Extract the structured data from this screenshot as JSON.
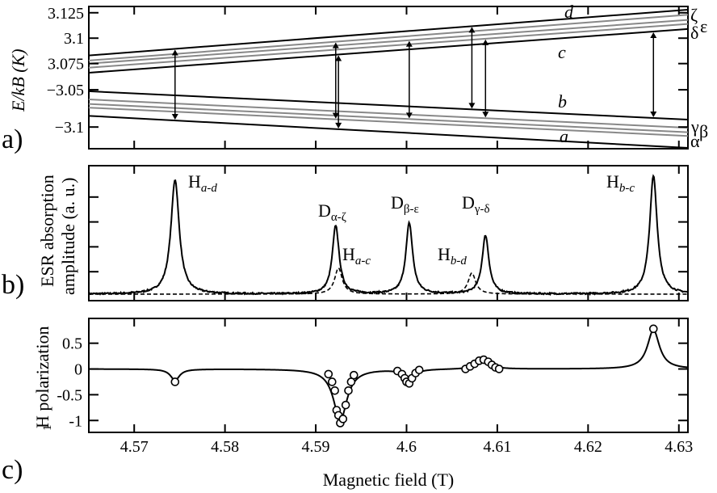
{
  "chart_data": [
    {
      "panel": "a)",
      "type": "line",
      "ylabel": "E/kB (K)",
      "upper_yticks": [
        "3.125",
        "3.1",
        "3.075"
      ],
      "lower_yticks": [
        "−3.05",
        "−3.1"
      ],
      "xlim": [
        4.565,
        4.631
      ],
      "upper_ylim": [
        3.066,
        3.128
      ],
      "lower_ylim": [
        -3.038,
        -3.128
      ],
      "series_upper": [
        {
          "name": "d",
          "x": [
            4.565,
            4.631
          ],
          "y": [
            3.083,
            3.128
          ],
          "color": "#000000"
        },
        {
          "name": "ζ",
          "x": [
            4.565,
            4.631
          ],
          "y": [
            3.078,
            3.123
          ],
          "color": "#888888"
        },
        {
          "name": "ε",
          "x": [
            4.565,
            4.631
          ],
          "y": [
            3.075,
            3.118
          ],
          "color": "#888888"
        },
        {
          "name": "δ",
          "x": [
            4.565,
            4.631
          ],
          "y": [
            3.071,
            3.114
          ],
          "color": "#888888"
        },
        {
          "name": "c",
          "x": [
            4.565,
            4.631
          ],
          "y": [
            3.066,
            3.109
          ],
          "color": "#000000"
        }
      ],
      "series_lower": [
        {
          "name": "b",
          "x": [
            4.565,
            4.631
          ],
          "y": [
            -3.052,
            -3.09
          ],
          "color": "#000000"
        },
        {
          "name": "γ",
          "x": [
            4.565,
            4.631
          ],
          "y": [
            -3.063,
            -3.101
          ],
          "color": "#888888"
        },
        {
          "name": "β",
          "x": [
            4.565,
            4.631
          ],
          "y": [
            -3.069,
            -3.107
          ],
          "color": "#888888"
        },
        {
          "name": "α",
          "x": [
            4.565,
            4.631
          ],
          "y": [
            -3.074,
            -3.112
          ],
          "color": "#888888"
        },
        {
          "name": "a",
          "x": [
            4.565,
            4.631
          ],
          "y": [
            -3.085,
            -3.128
          ],
          "color": "#000000"
        }
      ],
      "line_labels": [
        "d",
        "c",
        "b",
        "a"
      ],
      "right_labels": [
        "ζ",
        "δ",
        "ε",
        "γ",
        "β",
        "α"
      ],
      "transitions": [
        {
          "x": 4.5745,
          "from": "a",
          "to": "d"
        },
        {
          "x": 4.5922,
          "from": "α",
          "to": "ζ"
        },
        {
          "x": 4.5925,
          "from": "a",
          "to": "c"
        },
        {
          "x": 4.6003,
          "from": "β",
          "to": "ε"
        },
        {
          "x": 4.6072,
          "from": "b",
          "to": "d"
        },
        {
          "x": 4.6087,
          "from": "γ",
          "to": "δ"
        },
        {
          "x": 4.6272,
          "from": "b",
          "to": "c"
        }
      ]
    },
    {
      "panel": "b)",
      "type": "line",
      "ylabel_lines": [
        "ESR absorption",
        "amplitude (a. u.)"
      ],
      "xlim": [
        4.565,
        4.631
      ],
      "series": [
        {
          "name": "solid",
          "style": "solid",
          "peaks": [
            {
              "x0": 4.5745,
              "h": 0.92,
              "w": 0.00055
            },
            {
              "x0": 4.5922,
              "h": 0.55,
              "w": 0.00045
            },
            {
              "x0": 4.6003,
              "h": 0.57,
              "w": 0.00045
            },
            {
              "x0": 4.6087,
              "h": 0.47,
              "w": 0.00045
            },
            {
              "x0": 4.6272,
              "h": 0.95,
              "w": 0.0005
            }
          ]
        },
        {
          "name": "dashed",
          "style": "dashed",
          "peaks": [
            {
              "x0": 4.5925,
              "h": 0.21,
              "w": 0.0005
            },
            {
              "x0": 4.6072,
              "h": 0.17,
              "w": 0.0005
            }
          ]
        }
      ],
      "peak_labels": [
        {
          "main": "H",
          "sub": "a-d",
          "sub_italic": true
        },
        {
          "main": "D",
          "sub": "α-ζ",
          "sub_italic": false
        },
        {
          "main": "H",
          "sub": "a-c",
          "sub_italic": true
        },
        {
          "main": "D",
          "sub": "β-ε",
          "sub_italic": false
        },
        {
          "main": "H",
          "sub": "b-d",
          "sub_italic": true
        },
        {
          "main": "D",
          "sub": "γ-δ",
          "sub_italic": false
        },
        {
          "main": "H",
          "sub": "b-c",
          "sub_italic": true
        }
      ]
    },
    {
      "panel": "c)",
      "type": "scatter",
      "ylabel_main": "H polarization",
      "ylabel_sub": "1",
      "xlabel": "Magnetic field (T)",
      "xlim": [
        4.565,
        4.631
      ],
      "ylim": [
        -1.2,
        0.95
      ],
      "yticks": [
        "0.5",
        "0",
        "-0.5",
        "-1"
      ],
      "xticks": [
        "4.57",
        "4.58",
        "4.59",
        "4.6",
        "4.61",
        "4.62",
        "4.63"
      ],
      "points": [
        [
          4.5745,
          -0.25
        ],
        [
          4.5914,
          -0.1
        ],
        [
          4.5918,
          -0.25
        ],
        [
          4.5921,
          -0.42
        ],
        [
          4.5923,
          -0.8
        ],
        [
          4.5925,
          -0.9
        ],
        [
          4.5927,
          -1.05
        ],
        [
          4.593,
          -0.97
        ],
        [
          4.5933,
          -0.7
        ],
        [
          4.5936,
          -0.42
        ],
        [
          4.5939,
          -0.25
        ],
        [
          4.5942,
          -0.12
        ],
        [
          4.599,
          -0.04
        ],
        [
          4.5995,
          -0.1
        ],
        [
          4.5998,
          -0.18
        ],
        [
          4.6,
          -0.25
        ],
        [
          4.6003,
          -0.28
        ],
        [
          4.6006,
          -0.18
        ],
        [
          4.601,
          -0.08
        ],
        [
          4.6014,
          -0.02
        ],
        [
          4.6065,
          0.0
        ],
        [
          4.607,
          0.05
        ],
        [
          4.6075,
          0.1
        ],
        [
          4.608,
          0.16
        ],
        [
          4.6085,
          0.18
        ],
        [
          4.609,
          0.14
        ],
        [
          4.6094,
          0.08
        ],
        [
          4.6098,
          0.03
        ],
        [
          4.6102,
          0.0
        ],
        [
          4.6272,
          0.78
        ]
      ],
      "curve_dips": [
        {
          "x0": 4.5745,
          "a": -0.22,
          "w": 0.0006
        },
        {
          "x0": 4.5927,
          "a": -1.0,
          "w": 0.0009
        },
        {
          "x0": 4.6003,
          "a": -0.26,
          "w": 0.0006
        },
        {
          "x0": 4.6085,
          "a": 0.16,
          "w": 0.0009
        },
        {
          "x0": 4.6272,
          "a": 0.76,
          "w": 0.0008
        }
      ]
    }
  ]
}
